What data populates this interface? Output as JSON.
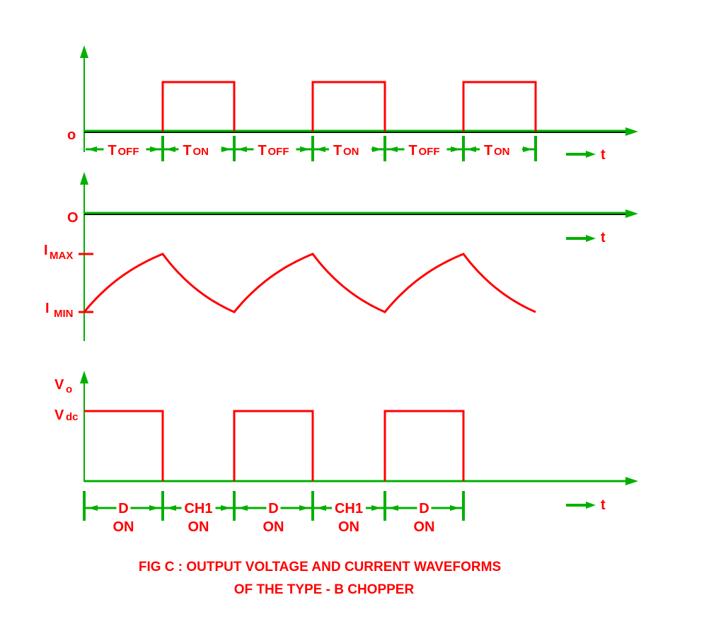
{
  "colors": {
    "axis": "#00b000",
    "waveform": "#ff0000",
    "baseline": "#000000"
  },
  "top_panel": {
    "origin_label": "o",
    "intervals": [
      {
        "main": "T",
        "sub": "OFF"
      },
      {
        "main": "T",
        "sub": "ON"
      },
      {
        "main": "T",
        "sub": "OFF"
      },
      {
        "main": "T",
        "sub": "ON"
      },
      {
        "main": "T",
        "sub": "OFF"
      },
      {
        "main": "T",
        "sub": "ON"
      }
    ],
    "time_label": "t"
  },
  "middle_panel": {
    "origin_label": "O",
    "time_label": "t",
    "imax": {
      "main": "I",
      "sub": "MAX"
    },
    "imin": {
      "main": "I",
      "sub": "MIN"
    }
  },
  "bottom_panel": {
    "y_label": {
      "main": "V",
      "sub": "o"
    },
    "level_label": {
      "main": "V",
      "sub": "dc"
    },
    "intervals": [
      {
        "top": "D",
        "bottom": "ON"
      },
      {
        "top": "CH1",
        "bottom": "ON"
      },
      {
        "top": "D",
        "bottom": "ON"
      },
      {
        "top": "CH1",
        "bottom": "ON"
      },
      {
        "top": "D",
        "bottom": "ON"
      }
    ],
    "time_label": "t"
  },
  "caption": {
    "line1": "FIG C : OUTPUT VOLTAGE AND CURRENT WAVEFORMS",
    "line2": "OF THE TYPE - B CHOPPER"
  }
}
